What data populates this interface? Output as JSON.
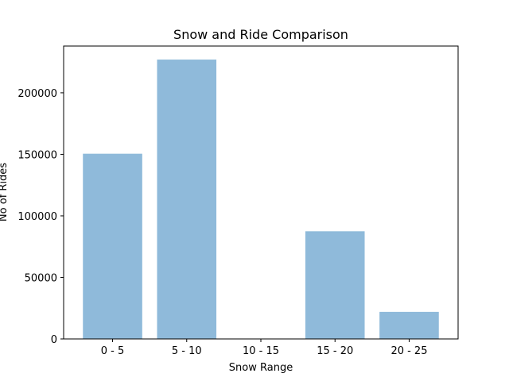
{
  "chart_data": {
    "type": "bar",
    "title": "Snow and Ride Comparison",
    "xlabel": "Snow Range",
    "ylabel": "No of Rides",
    "categories": [
      "0 - 5",
      "5 - 10",
      "10 - 15",
      "15 - 20",
      "20 - 25"
    ],
    "values": [
      150500,
      227000,
      0,
      87500,
      22000
    ],
    "ylim": [
      0,
      238000
    ],
    "yticks": [
      0,
      50000,
      100000,
      150000,
      200000
    ],
    "ytick_labels": [
      "0",
      "50000",
      "100000",
      "150000",
      "200000"
    ],
    "bar_color": "#8fbada",
    "grid": false,
    "legend": "none"
  }
}
